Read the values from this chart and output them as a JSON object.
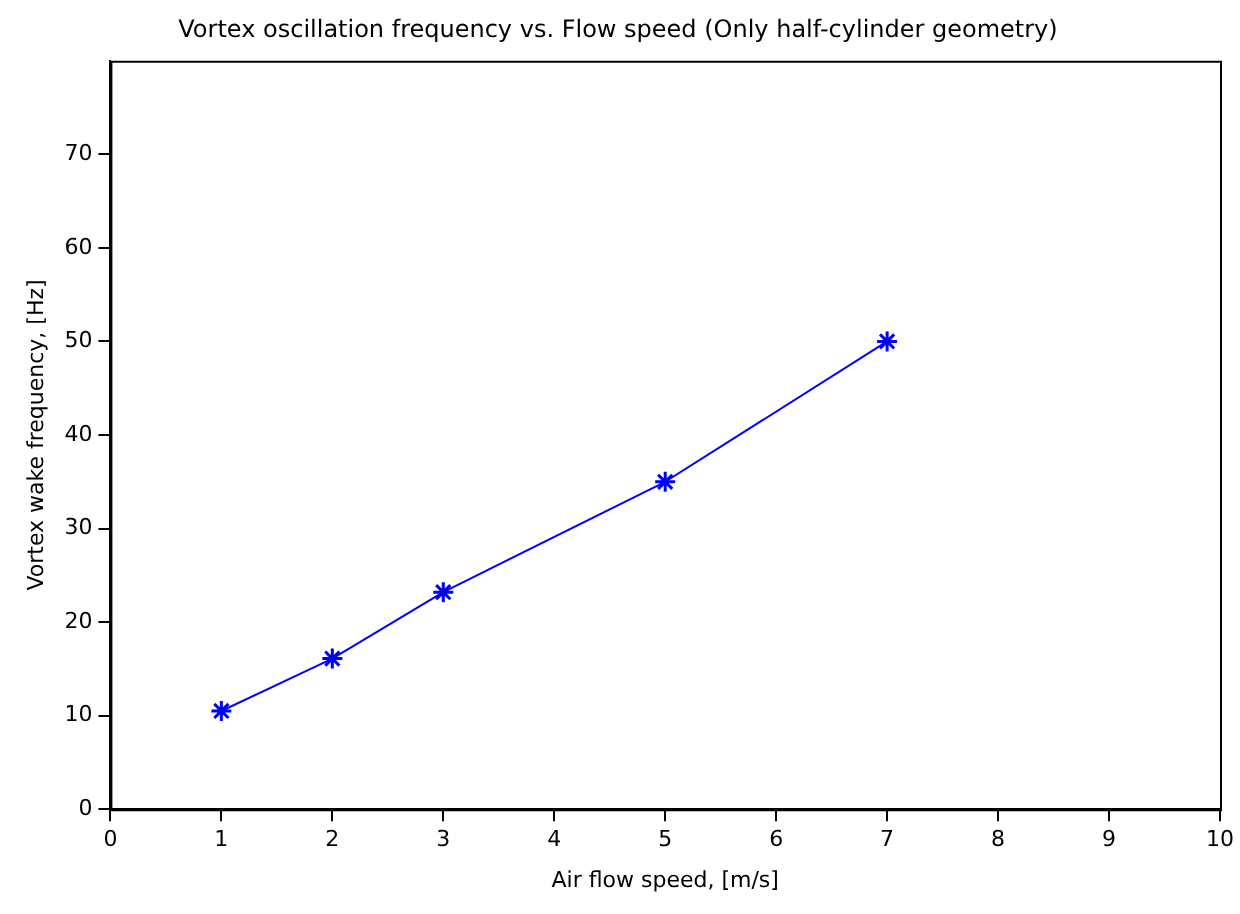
{
  "chart_data": {
    "type": "line",
    "title": "Vortex oscillation frequency vs. Flow speed (Only half-cylinder geometry)",
    "xlabel": "Air flow speed, [m/s]",
    "ylabel": "Vortex wake frequency, [Hz]",
    "x": [
      1,
      2,
      3,
      5,
      7
    ],
    "series": [
      {
        "color": "#0000ff",
        "values": [
          10.5,
          16.1,
          23.2,
          35,
          50
        ]
      }
    ],
    "xlim": [
      0,
      10
    ],
    "xticks": [
      0,
      1,
      2,
      3,
      4,
      5,
      6,
      7,
      8,
      9,
      10
    ],
    "ylim": [
      0,
      80
    ],
    "yticks": [
      0,
      10,
      20,
      30,
      40,
      50,
      60,
      70
    ],
    "grid": false,
    "legend": false,
    "marker": "cross",
    "line_style": "solid"
  }
}
